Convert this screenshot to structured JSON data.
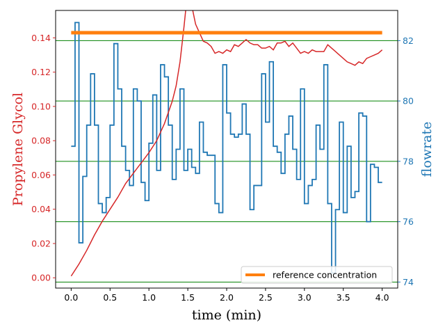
{
  "chart_data": {
    "type": "line",
    "xlabel": "time (min)",
    "ylabel_left": "Propylene Glycol",
    "ylabel_right": "flowrate",
    "xlim": [
      -0.2,
      4.2
    ],
    "ylim_left": [
      -0.006,
      0.156
    ],
    "ylim_right": [
      73.8,
      83.0
    ],
    "x_ticks": [
      0.0,
      0.5,
      1.0,
      1.5,
      2.0,
      2.5,
      3.0,
      3.5,
      4.0
    ],
    "x_tick_labels": [
      "0.0",
      "0.5",
      "1.0",
      "1.5",
      "2.0",
      "2.5",
      "3.0",
      "3.5",
      "4.0"
    ],
    "y_left_ticks": [
      0.0,
      0.02,
      0.04,
      0.06,
      0.08,
      0.1,
      0.12,
      0.14
    ],
    "y_left_tick_labels": [
      "0.00",
      "0.02",
      "0.04",
      "0.06",
      "0.08",
      "0.10",
      "0.12",
      "0.14"
    ],
    "y_right_ticks": [
      74,
      76,
      78,
      80,
      82
    ],
    "y_right_tick_labels": [
      "74",
      "76",
      "78",
      "80",
      "82"
    ],
    "grid": "horizontal lines at right-axis ticks (green)",
    "legend_position": "lower-right",
    "colors": {
      "left_axis": "#d62728",
      "right_axis": "#1f77b4",
      "reference": "#ff7f0e",
      "grid": "#008000"
    },
    "series": [
      {
        "name": "reference concentration",
        "axis": "left",
        "style": "thick-line",
        "x": [
          0.0,
          4.0
        ],
        "y": [
          0.143,
          0.143
        ]
      },
      {
        "axis": "left",
        "style": "line",
        "x": [
          0.0,
          0.1,
          0.2,
          0.3,
          0.4,
          0.5,
          0.6,
          0.7,
          0.8,
          0.9,
          1.0,
          1.1,
          1.2,
          1.3,
          1.35,
          1.4,
          1.45,
          1.5,
          1.55,
          1.6,
          1.65,
          1.7,
          1.75,
          1.8,
          1.85,
          1.9,
          1.95,
          2.0,
          2.05,
          2.1,
          2.15,
          2.2,
          2.25,
          2.3,
          2.35,
          2.4,
          2.45,
          2.5,
          2.55,
          2.6,
          2.65,
          2.7,
          2.75,
          2.8,
          2.85,
          2.9,
          2.95,
          3.0,
          3.05,
          3.1,
          3.15,
          3.2,
          3.25,
          3.3,
          3.35,
          3.4,
          3.45,
          3.5,
          3.55,
          3.6,
          3.65,
          3.7,
          3.75,
          3.8,
          3.85,
          3.9,
          3.95,
          4.0
        ],
        "y": [
          0.001,
          0.008,
          0.016,
          0.025,
          0.033,
          0.04,
          0.047,
          0.055,
          0.061,
          0.067,
          0.073,
          0.08,
          0.09,
          0.103,
          0.112,
          0.126,
          0.146,
          0.168,
          0.159,
          0.148,
          0.143,
          0.138,
          0.137,
          0.135,
          0.131,
          0.132,
          0.131,
          0.133,
          0.132,
          0.136,
          0.135,
          0.137,
          0.139,
          0.137,
          0.136,
          0.136,
          0.134,
          0.134,
          0.135,
          0.133,
          0.137,
          0.137,
          0.138,
          0.135,
          0.137,
          0.134,
          0.131,
          0.132,
          0.131,
          0.133,
          0.132,
          0.132,
          0.132,
          0.136,
          0.134,
          0.132,
          0.13,
          0.128,
          0.126,
          0.125,
          0.124,
          0.126,
          0.125,
          0.128,
          0.129,
          0.13,
          0.131,
          0.133
        ]
      },
      {
        "axis": "right",
        "style": "step",
        "x": [
          0.0,
          0.05,
          0.1,
          0.15,
          0.2,
          0.25,
          0.3,
          0.35,
          0.4,
          0.45,
          0.5,
          0.55,
          0.6,
          0.65,
          0.7,
          0.75,
          0.8,
          0.85,
          0.9,
          0.95,
          1.0,
          1.05,
          1.1,
          1.15,
          1.2,
          1.25,
          1.3,
          1.35,
          1.4,
          1.45,
          1.5,
          1.55,
          1.6,
          1.65,
          1.7,
          1.75,
          1.8,
          1.85,
          1.9,
          1.95,
          2.0,
          2.05,
          2.1,
          2.15,
          2.2,
          2.25,
          2.3,
          2.35,
          2.4,
          2.45,
          2.5,
          2.55,
          2.6,
          2.65,
          2.7,
          2.75,
          2.8,
          2.85,
          2.9,
          2.95,
          3.0,
          3.05,
          3.1,
          3.15,
          3.2,
          3.25,
          3.3,
          3.35,
          3.4,
          3.45,
          3.5,
          3.55,
          3.6,
          3.65,
          3.7,
          3.75,
          3.8,
          3.85,
          3.9,
          3.95,
          4.0
        ],
        "y": [
          78.5,
          82.6,
          75.3,
          77.5,
          79.2,
          80.9,
          79.2,
          76.6,
          76.3,
          76.8,
          79.2,
          81.9,
          80.4,
          78.5,
          77.7,
          77.2,
          80.4,
          80.0,
          77.3,
          76.7,
          78.6,
          80.2,
          77.7,
          81.2,
          80.8,
          79.2,
          77.4,
          78.4,
          80.4,
          77.7,
          78.4,
          77.8,
          77.6,
          79.3,
          78.3,
          78.2,
          78.2,
          76.6,
          76.3,
          81.2,
          79.6,
          78.9,
          78.8,
          78.9,
          79.9,
          78.9,
          76.4,
          77.2,
          77.2,
          80.9,
          79.3,
          81.3,
          78.5,
          78.3,
          77.6,
          78.9,
          79.5,
          78.4,
          77.4,
          80.4,
          76.6,
          77.2,
          77.4,
          79.2,
          78.4,
          81.2,
          76.6,
          74.3,
          76.4,
          79.3,
          76.3,
          78.5,
          76.8,
          77.0,
          79.6,
          79.5,
          76.0,
          77.9,
          77.8,
          77.3,
          77.3
        ]
      }
    ]
  }
}
